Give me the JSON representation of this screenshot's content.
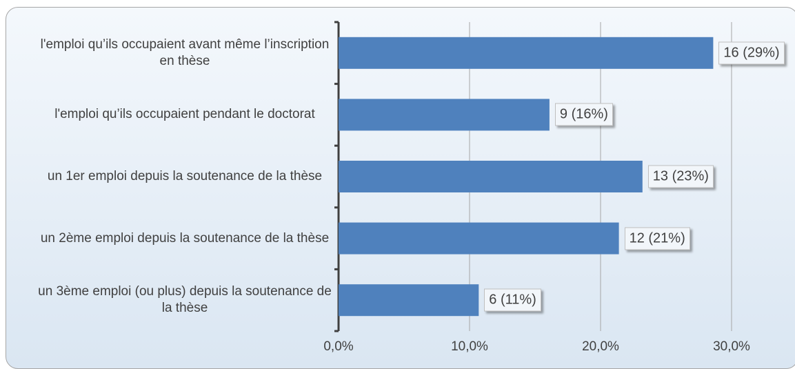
{
  "chart_data": {
    "type": "bar",
    "orientation": "horizontal",
    "categories": [
      "l'emploi qu’ils occupaient avant même l’inscription en thèse",
      "l'emploi qu’ils occupaient pendant le doctorat",
      "un 1er emploi depuis la soutenance de la thèse",
      "un 2ème emploi depuis la soutenance de la thèse",
      "un 3ème emploi (ou plus) depuis la soutenance de la thèse"
    ],
    "values": [
      28.6,
      16.1,
      23.2,
      21.4,
      10.7
    ],
    "value_labels": [
      "16 (29%)",
      "9 (16%)",
      "13 (23%)",
      "12 (21%)",
      "6 (11%)"
    ],
    "color": "#4f81bd",
    "xlim": [
      0,
      30
    ],
    "xticks": [
      {
        "value": 0,
        "label": "0,0%"
      },
      {
        "value": 10,
        "label": "10,0%"
      },
      {
        "value": 20,
        "label": "20,0%"
      },
      {
        "value": 30,
        "label": "30,0%"
      }
    ],
    "grid": true
  }
}
